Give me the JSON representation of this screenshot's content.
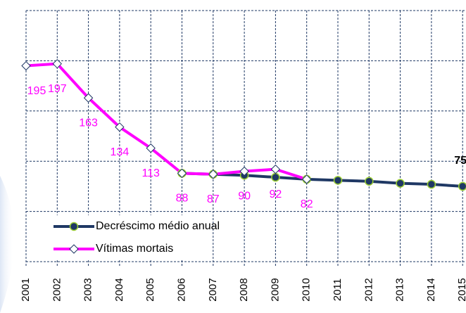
{
  "chart_data": {
    "type": "line",
    "categories": [
      "2001",
      "2002",
      "2003",
      "2004",
      "2005",
      "2006",
      "2007",
      "2008",
      "2009",
      "2010",
      "2011",
      "2012",
      "2013",
      "2014",
      "2015"
    ],
    "series": [
      {
        "name": "Decréscimo médio anual",
        "color": "#1f3864",
        "marker": "circle",
        "marker_edge": "#9acd32",
        "data_labels": "last",
        "values": [
          null,
          null,
          null,
          null,
          null,
          88,
          87,
          86,
          84,
          82,
          81,
          80,
          78,
          77,
          75
        ]
      },
      {
        "name": "Vítimas mortais",
        "color": "#ff00ff",
        "marker": "diamond",
        "marker_edge": "#1f3864",
        "data_labels": "all",
        "values": [
          195,
          197,
          163,
          134,
          113,
          88,
          87,
          90,
          92,
          82,
          null,
          null,
          null,
          null,
          null
        ]
      }
    ],
    "ylim": [
      0,
      250
    ],
    "yticks": [
      0,
      50,
      100,
      150,
      200,
      250
    ],
    "grid": true,
    "legend": "lower left"
  }
}
